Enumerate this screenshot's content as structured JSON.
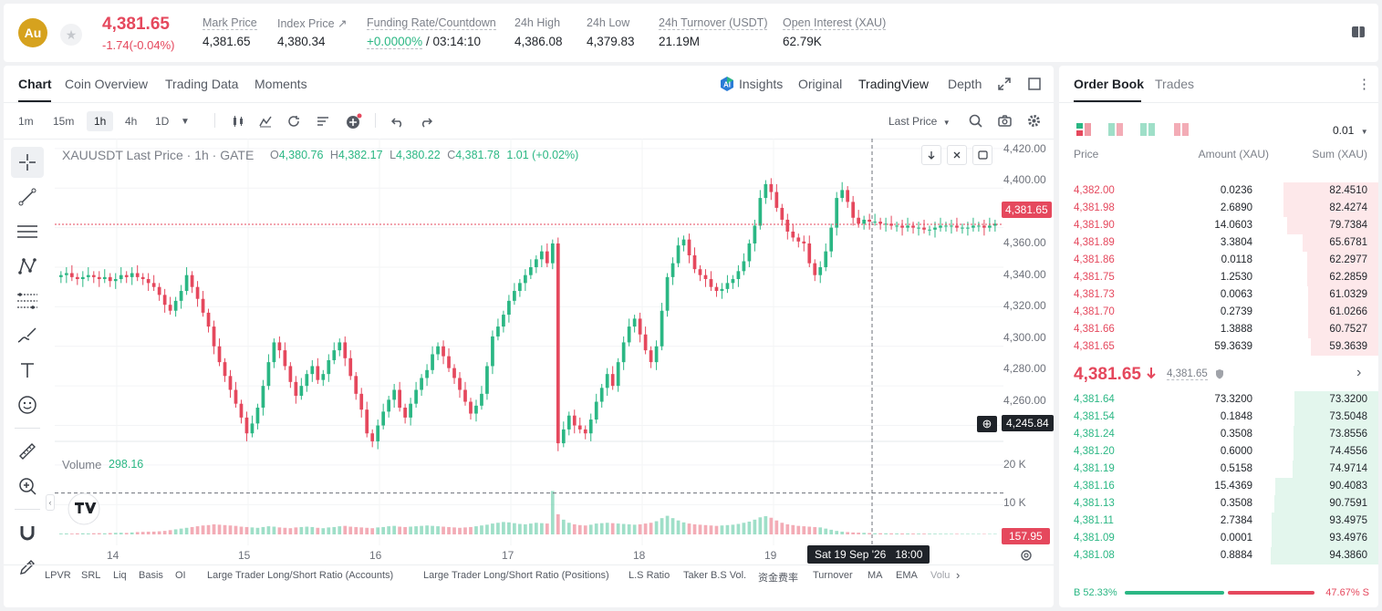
{
  "ticker": {
    "coin_symbol": "Au",
    "last_price": "4,381.65",
    "change": "-1.74(-0.04%)",
    "stats": [
      {
        "label": "Mark Price",
        "value": "4,381.65"
      },
      {
        "label": "Index Price ↗",
        "value": "4,380.34"
      },
      {
        "label": "Funding Rate/Countdown",
        "value_rate": "+0.0000%",
        "value_sep": " / ",
        "value_countdown": "03:14:10"
      },
      {
        "label": "24h High",
        "value": "4,386.08"
      },
      {
        "label": "24h Low",
        "value": "4,379.83"
      },
      {
        "label": "24h Turnover (USDT)",
        "value": "21.19M"
      },
      {
        "label": "Open Interest (XAU)",
        "value": "62.79K"
      }
    ]
  },
  "chart_tabs": {
    "left": [
      "Chart",
      "Coin Overview",
      "Trading Data",
      "Moments"
    ],
    "right": [
      "Insights",
      "Original",
      "TradingView",
      "Depth"
    ],
    "active_left": "Chart",
    "active_right": "TradingView"
  },
  "toolbar": {
    "timeframes": [
      "1m",
      "15m",
      "1h",
      "4h",
      "1D"
    ],
    "active_timeframe": "1h",
    "price_type": "Last Price"
  },
  "legend": {
    "title": "XAUUSDT Last Price · 1h · GATE",
    "o_label": "O",
    "o": "4,380.76",
    "h_label": "H",
    "h": "4,382.17",
    "l_label": "L",
    "l": "4,380.22",
    "c_label": "C",
    "c": "4,381.78",
    "change": "1.01 (+0.02%)"
  },
  "volume": {
    "label": "Volume",
    "value": "298.16"
  },
  "y_axis": [
    "4,420.00",
    "4,400.00",
    "4,380.00",
    "4,360.00",
    "4,340.00",
    "4,320.00",
    "4,300.00",
    "4,280.00",
    "4,260.00",
    "4,240.00"
  ],
  "volume_axis": [
    "20 K",
    "10 K"
  ],
  "x_axis": [
    "14",
    "15",
    "16",
    "17",
    "18",
    "19"
  ],
  "price_tags": {
    "last": "4,381.65",
    "crosshair": "4,245.84",
    "volume": "157.95",
    "crosshair_time": "Sat 19 Sep '26   18:00"
  },
  "indicators": [
    "LPVR",
    "SRL",
    "Liq",
    "Basis",
    "OI",
    "Large Trader Long/Short Ratio (Accounts)",
    "Large Trader Long/Short Ratio (Positions)",
    "L.S Ratio",
    "Taker B.S Vol.",
    "资金费率",
    "Turnover",
    "MA",
    "EMA",
    "Volu"
  ],
  "chart_data": {
    "type": "candlestick",
    "title": "XAUUSDT Last Price · 1h · GATE",
    "ylim": [
      4236,
      4425
    ],
    "x_ticks": [
      "14",
      "15",
      "16",
      "17",
      "18",
      "19"
    ],
    "close_series": [
      4356,
      4357,
      4355,
      4354,
      4355,
      4356,
      4355,
      4354,
      4355,
      4353,
      4354,
      4356,
      4355,
      4357,
      4355,
      4354,
      4352,
      4350,
      4346,
      4341,
      4338,
      4343,
      4348,
      4356,
      4350,
      4344,
      4337,
      4330,
      4320,
      4312,
      4305,
      4298,
      4291,
      4284,
      4276,
      4281,
      4289,
      4300,
      4312,
      4322,
      4318,
      4310,
      4302,
      4295,
      4300,
      4306,
      4310,
      4303,
      4306,
      4313,
      4318,
      4322,
      4314,
      4305,
      4296,
      4288,
      4276,
      4272,
      4280,
      4287,
      4293,
      4298,
      4289,
      4284,
      4291,
      4298,
      4304,
      4308,
      4316,
      4320,
      4315,
      4309,
      4304,
      4298,
      4292,
      4286,
      4290,
      4296,
      4310,
      4325,
      4330,
      4336,
      4343,
      4348,
      4352,
      4356,
      4360,
      4364,
      4368,
      4362,
      4372,
      4271,
      4278,
      4285,
      4280,
      4278,
      4276,
      4283,
      4292,
      4299,
      4306,
      4300,
      4312,
      4322,
      4330,
      4334,
      4326,
      4318,
      4312,
      4320,
      4338,
      4355,
      4362,
      4371,
      4374,
      4366,
      4359,
      4356,
      4354,
      4350,
      4348,
      4349,
      4352,
      4354,
      4358,
      4363,
      4372,
      4381,
      4395,
      4402,
      4398,
      4390,
      4384,
      4378,
      4375,
      4373,
      4372,
      4362,
      4356,
      4360,
      4368,
      4380,
      4395,
      4399,
      4393,
      4385,
      4382,
      4384,
      4383,
      4383,
      4382,
      4382,
      4381,
      4381,
      4380,
      4381,
      4380,
      4380,
      4379,
      4379,
      4380,
      4381,
      4381,
      4381,
      4380,
      4380,
      4380,
      4381,
      4381,
      4380,
      4381,
      4382
    ],
    "volume_series": [
      220,
      240,
      200,
      260,
      280,
      250,
      300,
      320,
      280,
      350,
      400,
      420,
      380,
      500,
      600,
      650,
      700,
      720,
      800,
      900,
      1100,
      1300,
      1500,
      1700,
      1900,
      2100,
      2300,
      2400,
      2600,
      2500,
      2400,
      2300,
      2200,
      2000,
      1900,
      1800,
      1700,
      1900,
      2100,
      2000,
      1800,
      1700,
      1600,
      1800,
      1900,
      2000,
      1900,
      1700,
      1600,
      1800,
      1900,
      2100,
      2200,
      2000,
      1900,
      1800,
      1700,
      1600,
      1800,
      1900,
      2100,
      2200,
      2000,
      1900,
      2000,
      2100,
      2200,
      2300,
      2200,
      2100,
      2000,
      1900,
      1800,
      1700,
      1800,
      1900,
      2100,
      2300,
      2500,
      2800,
      3000,
      3200,
      3100,
      2900,
      2700,
      2600,
      2800,
      3000,
      2900,
      2800,
      11200,
      5200,
      3800,
      3000,
      2600,
      2400,
      2300,
      2500,
      2800,
      2900,
      3000,
      2900,
      2800,
      2700,
      2600,
      2500,
      2600,
      2800,
      3000,
      3400,
      4200,
      4800,
      4200,
      3600,
      3100,
      2800,
      2600,
      2500,
      2400,
      2300,
      2200,
      2300,
      2400,
      2500,
      2700,
      3000,
      3300,
      3800,
      4400,
      4700,
      4300,
      3600,
      3000,
      2600,
      2400,
      2200,
      2100,
      2000,
      1900,
      1800,
      1500,
      1200,
      900,
      700,
      600,
      500,
      450,
      400,
      350,
      300,
      300,
      280,
      260,
      250,
      240,
      230,
      220,
      210,
      200,
      190,
      180,
      170,
      160,
      150,
      150,
      140,
      140,
      130,
      130,
      125,
      120,
      120,
      115
    ]
  },
  "order_book": {
    "tabs": [
      "Order Book",
      "Trades"
    ],
    "precision": "0.01",
    "headers": {
      "price": "Price",
      "amount": "Amount (XAU)",
      "sum": "Sum (XAU)"
    },
    "asks": [
      {
        "price": "4,382.00",
        "amount": "0.0236",
        "sum": "82.4510",
        "depth": 0.88
      },
      {
        "price": "4,381.98",
        "amount": "2.6890",
        "sum": "82.4274",
        "depth": 0.88
      },
      {
        "price": "4,381.90",
        "amount": "14.0603",
        "sum": "79.7384",
        "depth": 0.85
      },
      {
        "price": "4,381.89",
        "amount": "3.3804",
        "sum": "65.6781",
        "depth": 0.7
      },
      {
        "price": "4,381.86",
        "amount": "0.0118",
        "sum": "62.2977",
        "depth": 0.66
      },
      {
        "price": "4,381.75",
        "amount": "1.2530",
        "sum": "62.2859",
        "depth": 0.66
      },
      {
        "price": "4,381.73",
        "amount": "0.0063",
        "sum": "61.0329",
        "depth": 0.65
      },
      {
        "price": "4,381.70",
        "amount": "0.2739",
        "sum": "61.0266",
        "depth": 0.65
      },
      {
        "price": "4,381.66",
        "amount": "1.3888",
        "sum": "60.7527",
        "depth": 0.65
      },
      {
        "price": "4,381.65",
        "amount": "59.3639",
        "sum": "59.3639",
        "depth": 0.63
      }
    ],
    "mid_price": "4,381.65",
    "mid_mark": "4,381.65",
    "bids": [
      {
        "price": "4,381.64",
        "amount": "73.3200",
        "sum": "73.3200",
        "depth": 0.78
      },
      {
        "price": "4,381.54",
        "amount": "0.1848",
        "sum": "73.5048",
        "depth": 0.78
      },
      {
        "price": "4,381.24",
        "amount": "0.3508",
        "sum": "73.8556",
        "depth": 0.79
      },
      {
        "price": "4,381.20",
        "amount": "0.6000",
        "sum": "74.4556",
        "depth": 0.79
      },
      {
        "price": "4,381.19",
        "amount": "0.5158",
        "sum": "74.9714",
        "depth": 0.8
      },
      {
        "price": "4,381.16",
        "amount": "15.4369",
        "sum": "90.4083",
        "depth": 0.96
      },
      {
        "price": "4,381.13",
        "amount": "0.3508",
        "sum": "90.7591",
        "depth": 0.97
      },
      {
        "price": "4,381.11",
        "amount": "2.7384",
        "sum": "93.4975",
        "depth": 0.99
      },
      {
        "price": "4,381.09",
        "amount": "0.0001",
        "sum": "93.4976",
        "depth": 0.99
      },
      {
        "price": "4,381.08",
        "amount": "0.8884",
        "sum": "94.3860",
        "depth": 1.0
      }
    ],
    "buy_ratio": "B 52.33%",
    "sell_ratio": "47.67% S",
    "buy_fraction": 0.5233
  },
  "colors": {
    "up": "#2bb784",
    "down": "#e5485d",
    "brand": "#d6a21e"
  }
}
